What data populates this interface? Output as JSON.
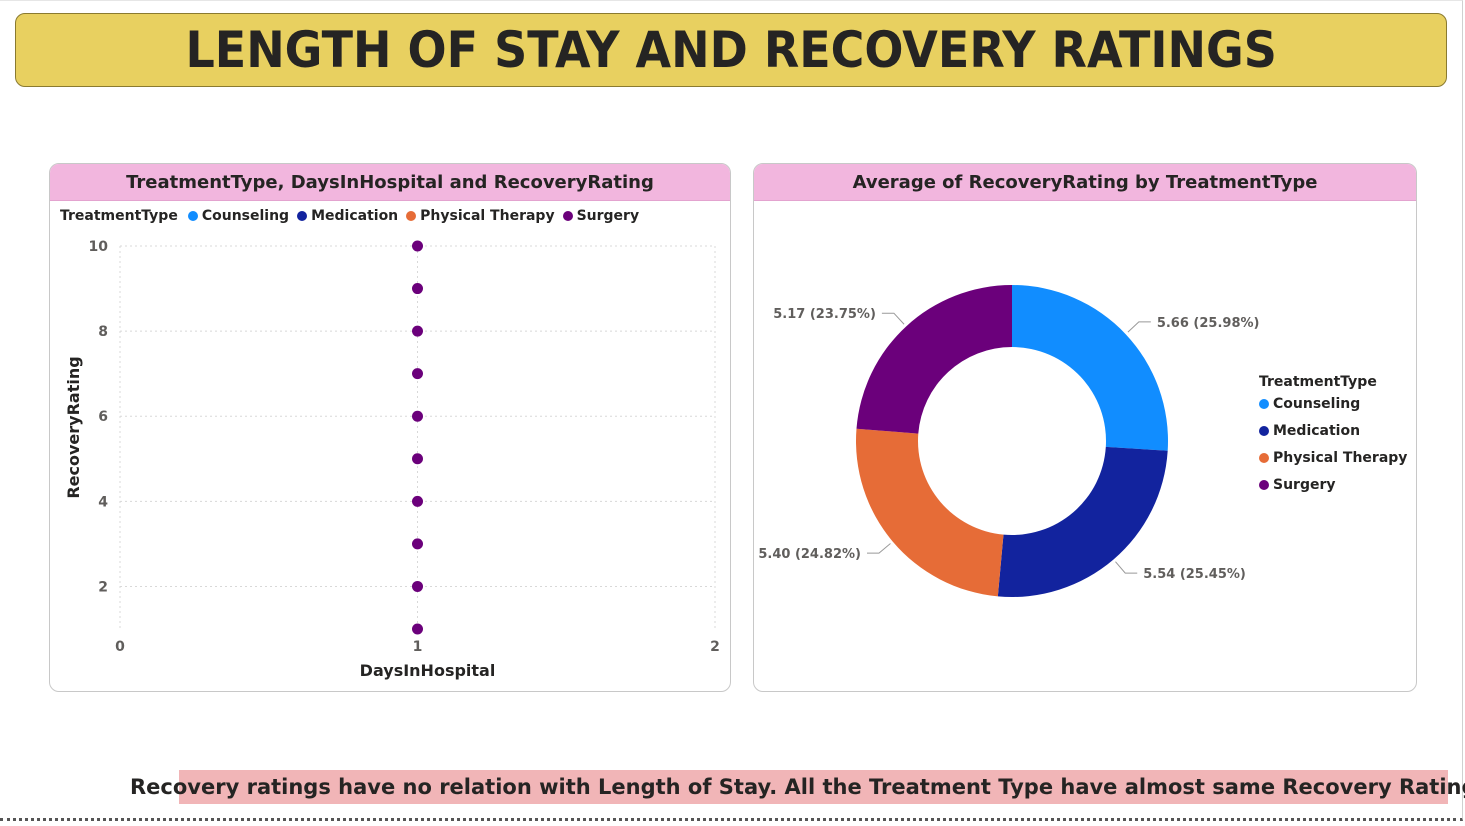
{
  "page_title": "LENGTH OF STAY AND RECOVERY RATINGS",
  "insight_text": "Recovery ratings have no relation with Length of Stay. All the Treatment Type have almost same Recovery Ratings.",
  "legend": {
    "title": "TreatmentType",
    "items": [
      {
        "label": "Counseling",
        "color": "#118dff"
      },
      {
        "label": "Medication",
        "color": "#12239e"
      },
      {
        "label": "Physical Therapy",
        "color": "#e66c37"
      },
      {
        "label": "Surgery",
        "color": "#6b007b"
      }
    ]
  },
  "chart_data": [
    {
      "type": "scatter",
      "title": "TreatmentType, DaysInHospital and RecoveryRating",
      "xlabel": "DaysInHospital",
      "ylabel": "RecoveryRating",
      "xlim": [
        0,
        2
      ],
      "ylim": [
        1,
        10
      ],
      "x_ticks": [
        "0",
        "1",
        "2"
      ],
      "y_ticks": [
        "2",
        "4",
        "6",
        "8",
        "10"
      ],
      "grid": true,
      "legend_position": "top-left",
      "series": [
        {
          "name": "Surgery",
          "color": "#6b007b",
          "points": [
            [
              1,
              1
            ],
            [
              1,
              2
            ],
            [
              1,
              3
            ],
            [
              1,
              4
            ],
            [
              1,
              5
            ],
            [
              1,
              6
            ],
            [
              1,
              7
            ],
            [
              1,
              8
            ],
            [
              1,
              9
            ],
            [
              1,
              10
            ]
          ]
        }
      ]
    },
    {
      "type": "pie",
      "variant": "donut",
      "title": "Average of RecoveryRating by TreatmentType",
      "categories": [
        "Counseling",
        "Medication",
        "Physical Therapy",
        "Surgery"
      ],
      "values": [
        5.66,
        5.54,
        5.4,
        5.17
      ],
      "labels": [
        "5.66 (25.98%)",
        "5.54 (25.45%)",
        "5.40 (24.82%)",
        "5.17 (23.75%)"
      ],
      "colors": [
        "#118dff",
        "#12239e",
        "#e66c37",
        "#6b007b"
      ],
      "legend_position": "right"
    }
  ]
}
